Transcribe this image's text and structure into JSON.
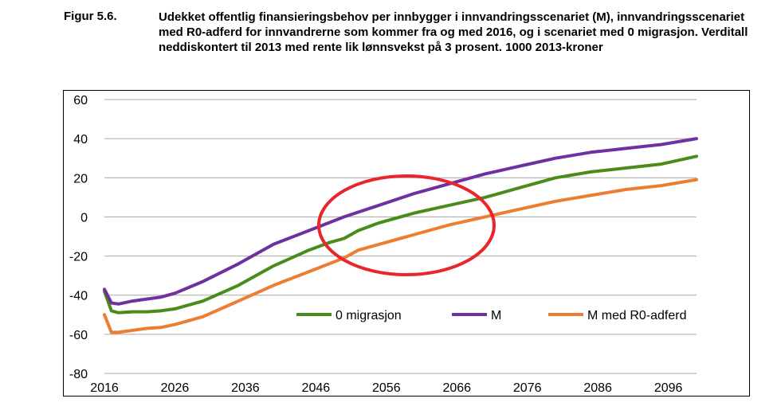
{
  "figure": {
    "label": "Figur 5.6.",
    "title": "Udekket offentlig finansieringsbehov per innbygger i innvandringsscenariet (M), innvandringsscenariet med R0-adferd for innvandrerne som kommer fra og med 2016, og i scenariet med 0 migrasjon. Verditall neddiskontert til 2013 med rente lik lønnsvekst på 3 prosent. 1000 2013-kroner"
  },
  "chart_data": {
    "type": "line",
    "title": "",
    "xlabel": "",
    "ylabel": "",
    "xlim": [
      2016,
      2100
    ],
    "ylim": [
      -80,
      60
    ],
    "x_ticks": [
      "2016",
      "2026",
      "2036",
      "2046",
      "2056",
      "2066",
      "2076",
      "2086",
      "2096"
    ],
    "y_ticks": [
      "60",
      "40",
      "20",
      "0",
      "-20",
      "-40",
      "-60",
      "-80"
    ],
    "grid": "horizontal",
    "legend_position": "inside-bottom",
    "annotation": "red ellipse highlighting crossing of zero around 2046-2068",
    "series": [
      {
        "name": "0 migrasjon",
        "color": "#4a8c1c",
        "x": [
          2016,
          2017,
          2018,
          2020,
          2022,
          2024,
          2026,
          2030,
          2035,
          2040,
          2045,
          2048,
          2050,
          2052,
          2055,
          2060,
          2065,
          2070,
          2075,
          2080,
          2085,
          2090,
          2095,
          2100
        ],
        "values": [
          -38,
          -48,
          -49,
          -48.5,
          -48.5,
          -48,
          -47,
          -43,
          -35,
          -25,
          -17,
          -13,
          -11,
          -7,
          -3,
          2,
          6,
          10,
          15,
          20,
          23,
          25,
          27,
          31
        ]
      },
      {
        "name": "M",
        "color": "#7030a0",
        "x": [
          2016,
          2017,
          2018,
          2020,
          2022,
          2024,
          2026,
          2030,
          2035,
          2040,
          2045,
          2050,
          2055,
          2060,
          2065,
          2070,
          2075,
          2080,
          2085,
          2090,
          2095,
          2100
        ],
        "values": [
          -37,
          -44,
          -44.5,
          -43,
          -42,
          -41,
          -39,
          -33,
          -24,
          -14,
          -7,
          0,
          6,
          12,
          17,
          22,
          26,
          30,
          33,
          35,
          37,
          40
        ]
      },
      {
        "name": "M med R0-adferd",
        "color": "#ed7d31",
        "x": [
          2016,
          2017,
          2018,
          2020,
          2022,
          2024,
          2026,
          2030,
          2035,
          2040,
          2045,
          2050,
          2052,
          2055,
          2060,
          2065,
          2070,
          2075,
          2080,
          2085,
          2090,
          2095,
          2100
        ],
        "values": [
          -50,
          -59,
          -59,
          -58,
          -57,
          -56.5,
          -55,
          -51,
          -43,
          -35,
          -28,
          -21,
          -17,
          -14,
          -9,
          -4,
          0,
          4,
          8,
          11,
          14,
          16,
          19
        ]
      }
    ]
  }
}
